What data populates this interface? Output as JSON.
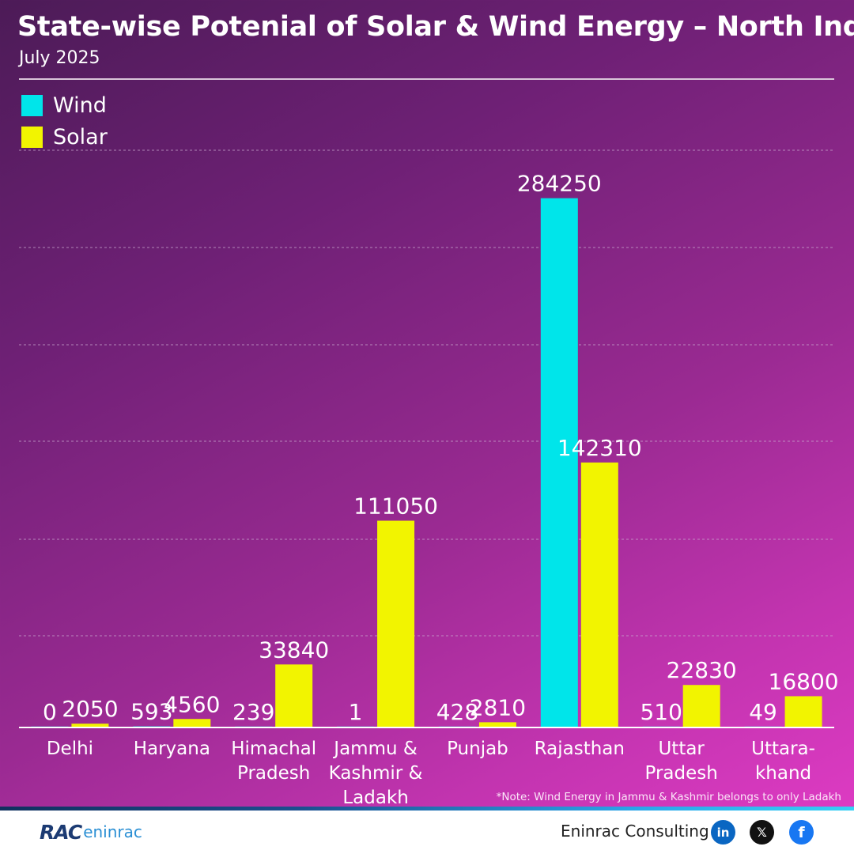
{
  "header": {
    "title": "State-wise Potenial of Solar & Wind Energy – North India",
    "subtitle": "July 2025"
  },
  "legend": [
    {
      "label": "Wind",
      "color": "#00e5ea"
    },
    {
      "label": "Solar",
      "color": "#f2f400"
    }
  ],
  "chart_data": {
    "type": "bar",
    "categories": [
      [
        "Delhi"
      ],
      [
        "Haryana"
      ],
      [
        "Himachal",
        "Pradesh"
      ],
      [
        "Jammu &",
        "Kashmir &",
        "Ladakh"
      ],
      [
        "Punjab"
      ],
      [
        "Rajasthan"
      ],
      [
        "Uttar",
        "Pradesh"
      ],
      [
        "Uttara-",
        "khand"
      ]
    ],
    "series": [
      {
        "name": "Wind",
        "color": "#00e5ea",
        "values": [
          0,
          593,
          239,
          1,
          428,
          284250,
          510,
          49
        ]
      },
      {
        "name": "Solar",
        "color": "#f2f400",
        "values": [
          2050,
          4560,
          33840,
          111050,
          2810,
          142310,
          22830,
          16800
        ]
      }
    ],
    "ylim": [
      0,
      310000
    ],
    "grid": true,
    "legend_position": "top-left"
  },
  "note": "*Note: Wind Energy in Jammu & Kashmir belongs to only Ladakh",
  "footer": {
    "logo_mark": "RAC",
    "logo_name": "eninrac",
    "brand": "Eninrac Consulting",
    "social": [
      {
        "icon": "linkedin-icon",
        "glyph": "in",
        "color": "#0a66c2"
      },
      {
        "icon": "x-icon",
        "glyph": "𝕏",
        "color": "#111111"
      },
      {
        "icon": "facebook-icon",
        "glyph": "f",
        "color": "#1877f2"
      }
    ]
  }
}
